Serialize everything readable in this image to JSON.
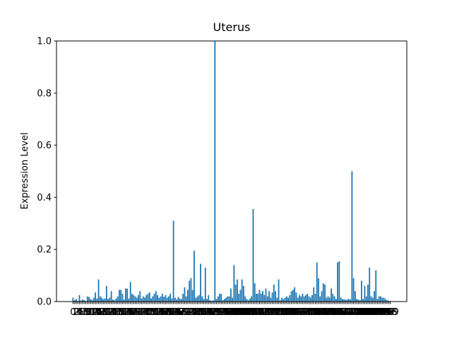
{
  "chart_data": {
    "type": "bar",
    "title": "Uterus",
    "ylabel": "Expression Level",
    "color": "#1f77b4",
    "ylim": [
      0,
      1
    ],
    "yticks": [
      {
        "value": 0,
        "label": "0.0"
      },
      {
        "value": 0.2,
        "label": "0.2"
      },
      {
        "value": 0.4,
        "label": "0.4"
      },
      {
        "value": 0.6,
        "label": "0.6"
      },
      {
        "value": 0.8,
        "label": "0.8"
      },
      {
        "value": 1,
        "label": "1.0"
      }
    ],
    "categories": [
      "0",
      "1",
      "2",
      "3",
      "4",
      "5",
      "6",
      "7",
      "8",
      "9",
      "10",
      "11",
      "12",
      "13",
      "14",
      "15",
      "16",
      "17",
      "18",
      "19",
      "20",
      "21",
      "22",
      "23",
      "24",
      "25",
      "26",
      "27",
      "28",
      "29",
      "30",
      "31",
      "32",
      "33",
      "34",
      "35",
      "36",
      "37",
      "38",
      "39",
      "40",
      "41",
      "42",
      "43",
      "44",
      "45",
      "46",
      "47",
      "48",
      "49",
      "50",
      "51",
      "52",
      "53",
      "54",
      "55",
      "56",
      "57",
      "58",
      "59",
      "60",
      "61",
      "62",
      "63",
      "64",
      "65",
      "66",
      "67",
      "68",
      "69",
      "70",
      "71",
      "72",
      "73",
      "74",
      "75",
      "76",
      "77",
      "78",
      "79",
      "80",
      "81",
      "82",
      "83",
      "84",
      "85",
      "86",
      "87",
      "88",
      "89",
      "90",
      "91",
      "92",
      "93",
      "94",
      "95",
      "96",
      "97",
      "98",
      "99",
      "100",
      "101",
      "102",
      "103",
      "104",
      "105",
      "106",
      "107",
      "108",
      "109",
      "110",
      "111",
      "112",
      "113",
      "114",
      "115",
      "116",
      "117",
      "118",
      "119",
      "120",
      "121",
      "122",
      "123",
      "124",
      "125",
      "126",
      "127",
      "128",
      "129",
      "130",
      "131",
      "132",
      "133",
      "134",
      "135",
      "136",
      "137",
      "138",
      "139",
      "140",
      "141",
      "142",
      "143",
      "144",
      "145",
      "146",
      "147",
      "148",
      "149",
      "150",
      "151",
      "152",
      "153",
      "154",
      "155",
      "156",
      "157",
      "158",
      "159",
      "160",
      "161",
      "162",
      "163",
      "164",
      "165",
      "166",
      "167",
      "168",
      "169",
      "170",
      "171",
      "172",
      "173",
      "174",
      "175",
      "176",
      "177",
      "178",
      "179",
      "180",
      "181",
      "182",
      "183",
      "184",
      "185",
      "186",
      "187",
      "188",
      "189",
      "190",
      "191",
      "192",
      "193",
      "194",
      "195",
      "196",
      "197",
      "198",
      "199"
    ],
    "values": [
      0.015,
      0.005,
      0.01,
      0.003,
      0.025,
      0.004,
      0.008,
      0.006,
      0.002,
      0.02,
      0.018,
      0.01,
      0.006,
      0.015,
      0.035,
      0.012,
      0.085,
      0.02,
      0.015,
      0.01,
      0.012,
      0.06,
      0.01,
      0.015,
      0.04,
      0.008,
      0.005,
      0.012,
      0.02,
      0.045,
      0.045,
      0.03,
      0.008,
      0.05,
      0.05,
      0.012,
      0.075,
      0.03,
      0.025,
      0.02,
      0.015,
      0.025,
      0.04,
      0.012,
      0.02,
      0.015,
      0.025,
      0.03,
      0.035,
      0.012,
      0.02,
      0.03,
      0.04,
      0.025,
      0.015,
      0.02,
      0.03,
      0.018,
      0.025,
      0.015,
      0.02,
      0.03,
      0.012,
      0.31,
      0.015,
      0.008,
      0.018,
      0.012,
      0.01,
      0.03,
      0.055,
      0.02,
      0.045,
      0.08,
      0.09,
      0.045,
      0.195,
      0.015,
      0.02,
      0.025,
      0.145,
      0.02,
      0.01,
      0.13,
      0.01,
      0.025,
      0.005,
      0.003,
      0.004,
      1.0,
      0.01,
      0.02,
      0.03,
      0.03,
      0.005,
      0.01,
      0.015,
      0.02,
      0.02,
      0.05,
      0.015,
      0.14,
      0.065,
      0.085,
      0.03,
      0.045,
      0.085,
      0.06,
      0.02,
      0.01,
      0.005,
      0.012,
      0.02,
      0.355,
      0.07,
      0.03,
      0.03,
      0.045,
      0.03,
      0.04,
      0.025,
      0.05,
      0.02,
      0.04,
      0.015,
      0.035,
      0.065,
      0.04,
      0.015,
      0.085,
      0.005,
      0.015,
      0.01,
      0.015,
      0.02,
      0.015,
      0.025,
      0.04,
      0.045,
      0.055,
      0.035,
      0.015,
      0.025,
      0.02,
      0.03,
      0.02,
      0.025,
      0.03,
      0.02,
      0.015,
      0.025,
      0.055,
      0.03,
      0.15,
      0.09,
      0.02,
      0.04,
      0.07,
      0.065,
      0.015,
      0.02,
      0.015,
      0.05,
      0.03,
      0.02,
      0.01,
      0.15,
      0.155,
      0.015,
      0.01,
      0.008,
      0.008,
      0.008,
      0.01,
      0.008,
      0.5,
      0.09,
      0.04,
      0.01,
      0.008,
      0.005,
      0.08,
      0.01,
      0.06,
      0.02,
      0.065,
      0.13,
      0.02,
      0.015,
      0.04,
      0.12,
      0.01,
      0.02,
      0.02,
      0.015,
      0.015,
      0.01,
      0.005,
      0.003,
      0.002
    ]
  }
}
